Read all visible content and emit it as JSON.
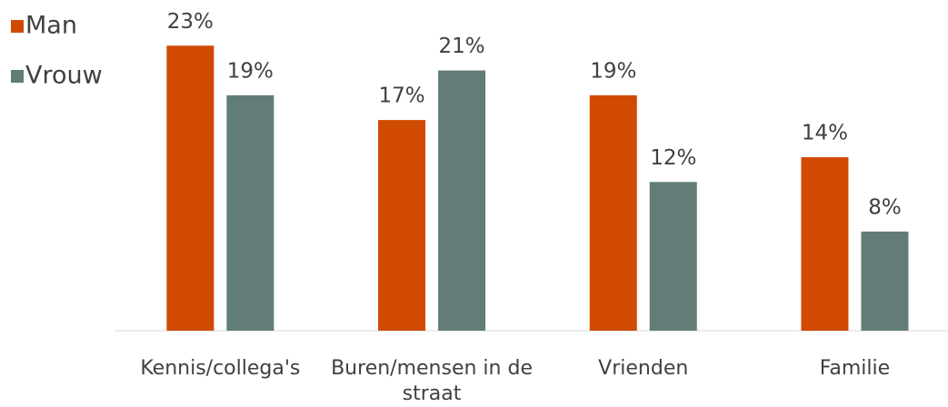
{
  "chart_data": {
    "type": "bar",
    "categories": [
      "Kennis/collega's",
      "Buren/mensen in de straat",
      "Vrienden",
      "Familie"
    ],
    "series": [
      {
        "name": "Man",
        "color": "#d04a02",
        "values": [
          23,
          17,
          19,
          14
        ],
        "value_labels": [
          "23%",
          "17%",
          "19%",
          "14%"
        ]
      },
      {
        "name": "Vrouw",
        "color": "#627c77",
        "values": [
          19,
          21,
          12,
          8
        ],
        "value_labels": [
          "19%",
          "21%",
          "12%",
          "8%"
        ]
      }
    ],
    "ylim": [
      0,
      25
    ],
    "grid": false,
    "legend": "top-left"
  }
}
